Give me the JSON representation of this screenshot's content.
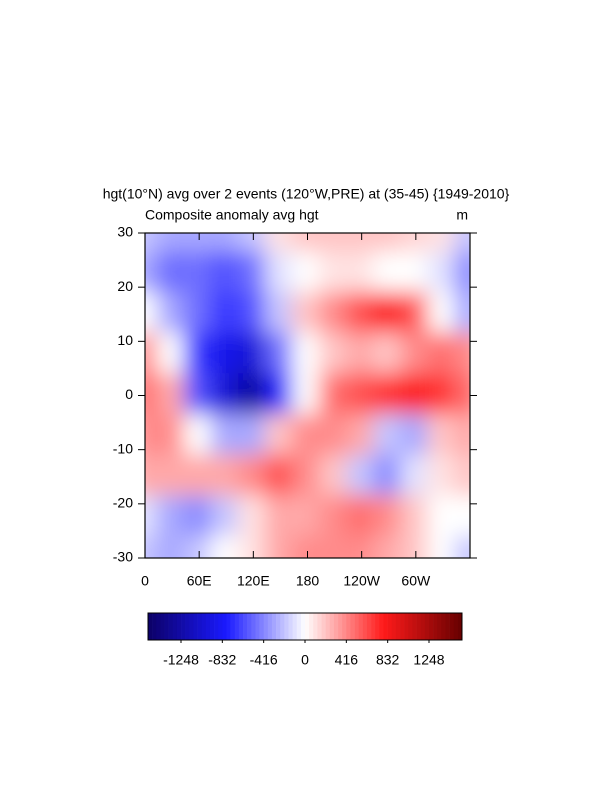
{
  "chart_data": {
    "type": "heatmap",
    "title": "hgt(10°N) avg over 2 events (120°W,PRE) at (35-45) {1949-2010}",
    "subtitle": "Composite anomaly avg hgt",
    "units": "m",
    "x": [
      0,
      30,
      60,
      90,
      120,
      150,
      180,
      210,
      240,
      270,
      300,
      330,
      360
    ],
    "y": [
      30,
      22.5,
      15,
      7.5,
      0,
      -7.5,
      -15,
      -22.5,
      -30
    ],
    "z": [
      [
        -200,
        -300,
        -300,
        -300,
        -200,
        100,
        200,
        200,
        200,
        200,
        150,
        100,
        -200
      ],
      [
        -300,
        -500,
        -500,
        -600,
        -500,
        -100,
        0,
        100,
        100,
        0,
        0,
        -100,
        -400
      ],
      [
        0,
        -300,
        -500,
        -700,
        -600,
        -200,
        200,
        400,
        600,
        800,
        600,
        0,
        -300
      ],
      [
        400,
        0,
        -700,
        -900,
        -1000,
        -500,
        0,
        200,
        300,
        200,
        400,
        500,
        400
      ],
      [
        500,
        300,
        -600,
        -1000,
        -1300,
        -800,
        0,
        500,
        600,
        700,
        800,
        700,
        500
      ],
      [
        400,
        400,
        0,
        -300,
        -300,
        200,
        400,
        400,
        300,
        -200,
        -300,
        200,
        300
      ],
      [
        300,
        300,
        300,
        300,
        400,
        600,
        400,
        200,
        -200,
        -400,
        -100,
        100,
        200
      ],
      [
        -100,
        -300,
        -400,
        -200,
        100,
        300,
        300,
        400,
        500,
        400,
        200,
        0,
        0
      ],
      [
        -200,
        -300,
        -200,
        0,
        100,
        300,
        400,
        400,
        400,
        300,
        200,
        0,
        -200
      ]
    ],
    "xlim": [
      0,
      360
    ],
    "xticks": [
      0,
      {
        "value": 60,
        "label": "60E"
      },
      {
        "value": 120,
        "label": "120E"
      },
      180,
      {
        "value": 240,
        "label": "120W"
      },
      {
        "value": 300,
        "label": "60W"
      }
    ],
    "ylim": [
      -30,
      30
    ],
    "yticks": [
      -30,
      -20,
      -10,
      0,
      10,
      20,
      30
    ],
    "clim": [
      -1580,
      1580
    ],
    "colormap": [
      "#0c0066",
      "#1a1aff",
      "#ffffff",
      "#ff1a1a",
      "#660000"
    ],
    "cticks": [
      -1248,
      -832,
      -416,
      0,
      416,
      832,
      1248
    ]
  }
}
